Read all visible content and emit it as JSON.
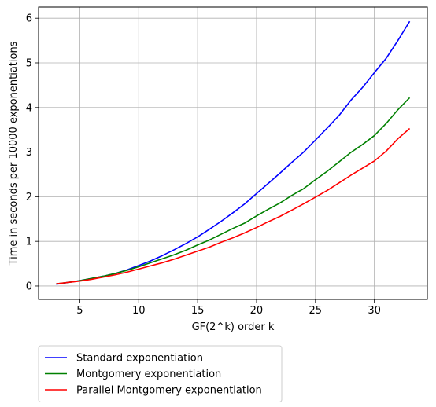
{
  "chart_data": {
    "type": "line",
    "title": "",
    "xlabel": "GF(2^k) order k",
    "ylabel": "Time in seconds per 10000 exponentiations",
    "xlim": [
      1.5,
      34.5
    ],
    "ylim": [
      -0.3,
      6.25
    ],
    "xticks": [
      5,
      10,
      15,
      20,
      25,
      30
    ],
    "yticks": [
      0,
      1,
      2,
      3,
      4,
      5,
      6
    ],
    "grid": true,
    "legend_position": "below",
    "x": [
      3,
      4,
      5,
      6,
      7,
      8,
      9,
      10,
      11,
      12,
      13,
      14,
      15,
      16,
      17,
      18,
      19,
      20,
      21,
      22,
      23,
      24,
      25,
      26,
      27,
      28,
      29,
      30,
      31,
      32,
      33
    ],
    "series": [
      {
        "name": "Standard exponentiation",
        "color": "#0000ff",
        "values": [
          0.04,
          0.08,
          0.12,
          0.17,
          0.22,
          0.28,
          0.36,
          0.46,
          0.56,
          0.68,
          0.81,
          0.95,
          1.1,
          1.27,
          1.45,
          1.64,
          1.84,
          2.07,
          2.3,
          2.53,
          2.77,
          3.0,
          3.27,
          3.54,
          3.82,
          4.16,
          4.45,
          4.78,
          5.1,
          5.5,
          5.93
        ]
      },
      {
        "name": "Montgomery exponentiation",
        "color": "#008000",
        "values": [
          0.05,
          0.08,
          0.12,
          0.17,
          0.22,
          0.28,
          0.35,
          0.43,
          0.52,
          0.61,
          0.7,
          0.8,
          0.92,
          1.03,
          1.16,
          1.29,
          1.41,
          1.57,
          1.72,
          1.86,
          2.03,
          2.18,
          2.38,
          2.57,
          2.78,
          2.99,
          3.17,
          3.37,
          3.64,
          3.95,
          4.22
        ]
      },
      {
        "name": "Parallel Montgomery exponentiation",
        "color": "#ff0000",
        "values": [
          0.05,
          0.08,
          0.11,
          0.15,
          0.2,
          0.25,
          0.31,
          0.38,
          0.45,
          0.52,
          0.6,
          0.69,
          0.78,
          0.87,
          0.98,
          1.08,
          1.19,
          1.31,
          1.44,
          1.56,
          1.7,
          1.84,
          1.99,
          2.14,
          2.31,
          2.48,
          2.64,
          2.8,
          3.02,
          3.3,
          3.53
        ]
      }
    ]
  }
}
